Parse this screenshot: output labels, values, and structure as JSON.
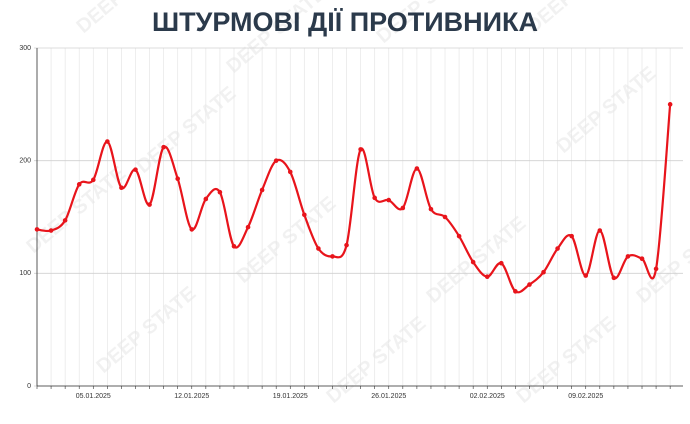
{
  "chart_data": {
    "type": "line",
    "title": "ШТУРМОВІ ДІЇ ПРОТИВНИКА",
    "watermark": "DEEP STATE",
    "categories": [
      null,
      null,
      null,
      null,
      "05.01.2025",
      null,
      null,
      null,
      null,
      null,
      null,
      "12.01.2025",
      null,
      null,
      null,
      null,
      null,
      null,
      "19.01.2025",
      null,
      null,
      null,
      null,
      null,
      null,
      "26.01.2025",
      null,
      null,
      null,
      null,
      null,
      null,
      "02.02.2025",
      null,
      null,
      null,
      null,
      null,
      null,
      "09.02.2025",
      null,
      null,
      null,
      null,
      null,
      null
    ],
    "series": [
      {
        "name": null,
        "color": "#e8141b",
        "values": [
          139,
          138,
          147,
          179,
          183,
          217,
          176,
          192,
          161,
          212,
          184,
          139,
          166,
          172,
          124,
          141,
          174,
          200,
          190,
          152,
          122,
          115,
          125,
          210,
          167,
          165,
          158,
          193,
          157,
          150,
          133,
          110,
          97,
          109,
          84,
          90,
          101,
          122,
          133,
          98,
          138,
          96,
          115,
          113,
          104,
          250
        ]
      }
    ],
    "ylim": [
      0,
      300
    ],
    "yticks": [
      0,
      100,
      200,
      300
    ],
    "grid": true
  }
}
